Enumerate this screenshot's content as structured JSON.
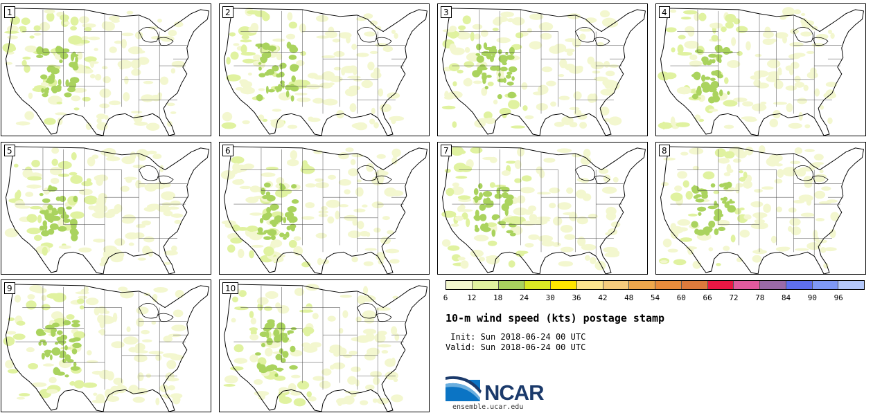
{
  "panels": [
    {
      "label": "1"
    },
    {
      "label": "2"
    },
    {
      "label": "3"
    },
    {
      "label": "4"
    },
    {
      "label": "5"
    },
    {
      "label": "6"
    },
    {
      "label": "7"
    },
    {
      "label": "8"
    },
    {
      "label": "9"
    },
    {
      "label": "10"
    }
  ],
  "colorbar": {
    "colors": [
      "#f3f7cf",
      "#e0f2a0",
      "#aad35e",
      "#dbe924",
      "#ffe600",
      "#fde58e",
      "#f6cb7d",
      "#efa84c",
      "#e98c3c",
      "#dd7a3c",
      "#ea1744",
      "#e15a9e",
      "#9a6aa8",
      "#5f6fef",
      "#7f99f5",
      "#b4c8fb"
    ],
    "ticks": [
      "6",
      "12",
      "18",
      "24",
      "30",
      "36",
      "42",
      "48",
      "54",
      "60",
      "66",
      "72",
      "78",
      "84",
      "90",
      "96"
    ]
  },
  "title": "10-m wind speed (kts) postage stamp",
  "init_line": " Init: Sun 2018-06-24 00 UTC",
  "valid_line": "Valid: Sun 2018-06-24 00 UTC",
  "logo": {
    "text": "NCAR",
    "url_text": "ensemble.ucar.edu",
    "brand_color": "#1b3a6b"
  }
}
